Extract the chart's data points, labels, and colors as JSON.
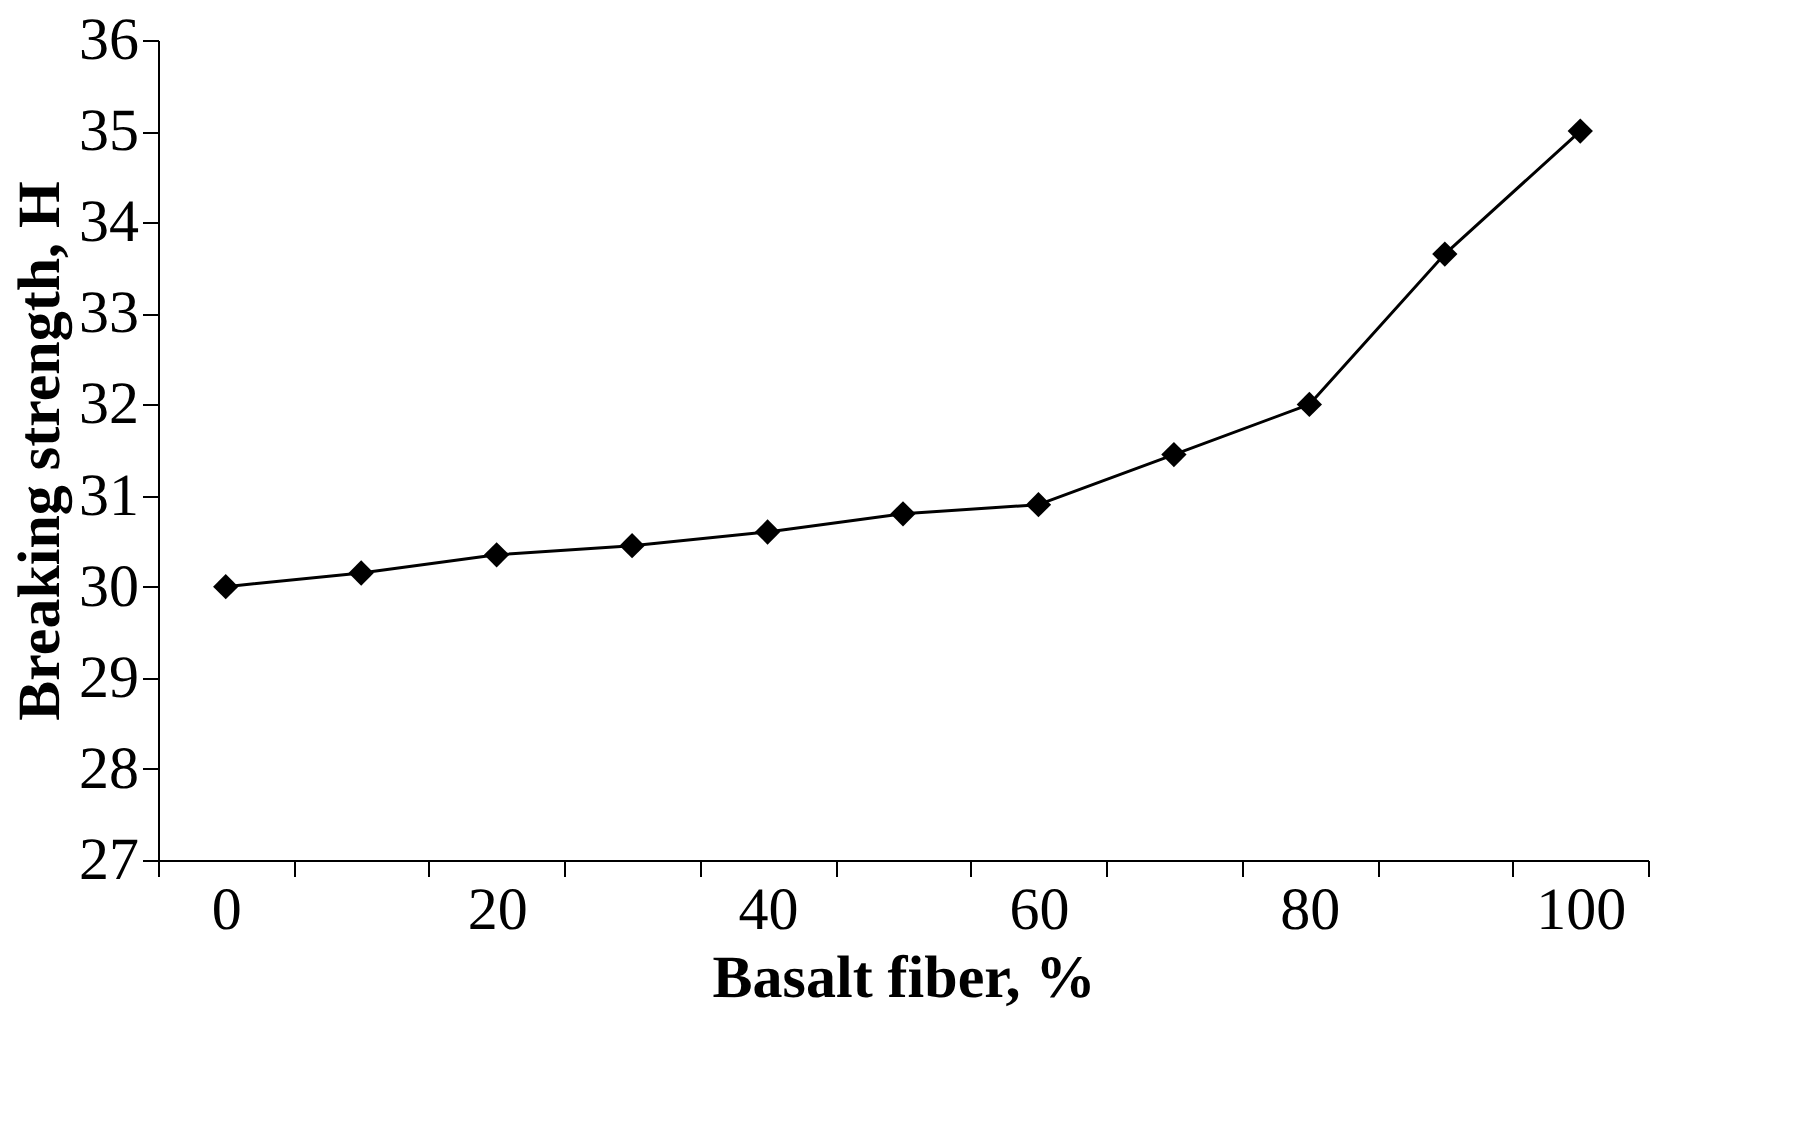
{
  "chart_data": {
    "type": "line",
    "xlabel": "Basalt fiber, %",
    "ylabel": "Breaking strength, H",
    "categories": [
      "0",
      null,
      "20",
      null,
      "40",
      null,
      "60",
      null,
      "80",
      null,
      "100"
    ],
    "series": [
      {
        "color": "#000000",
        "values": [
          30.0,
          30.15,
          30.35,
          30.45,
          30.6,
          30.8,
          30.9,
          31.45,
          32.0,
          33.65,
          35.0
        ]
      }
    ],
    "ylim": [
      27,
      36
    ],
    "yticks": [
      27,
      28,
      29,
      30,
      31,
      32,
      33,
      34,
      35,
      36
    ],
    "grid": false,
    "legend": false,
    "marker": "diamond",
    "line_style": "solid"
  }
}
